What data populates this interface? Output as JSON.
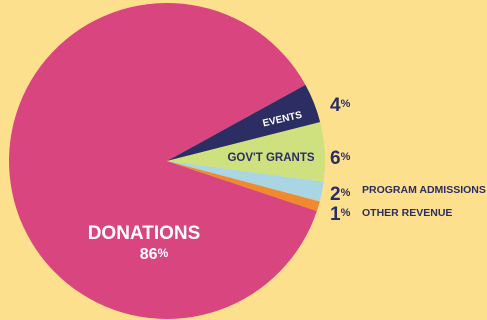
{
  "chart_data": {
    "type": "pie",
    "title": "",
    "slices": [
      {
        "name": "DONATIONS",
        "pct": 86,
        "pct_num": "86",
        "color": "#d9457f",
        "label_color": "#ffffff"
      },
      {
        "name": "EVENTS",
        "pct": 4,
        "pct_num": "4",
        "color": "#2b2d63",
        "label_color": "#ffffff"
      },
      {
        "name": "GOV'T GRANTS",
        "pct": 6,
        "pct_num": "6",
        "color": "#cfe07e",
        "label_color": "#2b2d63"
      },
      {
        "name": "PROGRAM ADMISSIONS",
        "pct": 2,
        "pct_num": "2",
        "color": "#a9d6e2",
        "label_color": "#2b2d63"
      },
      {
        "name": "OTHER REVENUE",
        "pct": 1,
        "pct_num": "1",
        "color": "#ef8b2e",
        "label_color": "#2b2d63"
      }
    ],
    "percent_sign": "%",
    "text_color": "#2b2d63",
    "background": "#fde08e"
  }
}
